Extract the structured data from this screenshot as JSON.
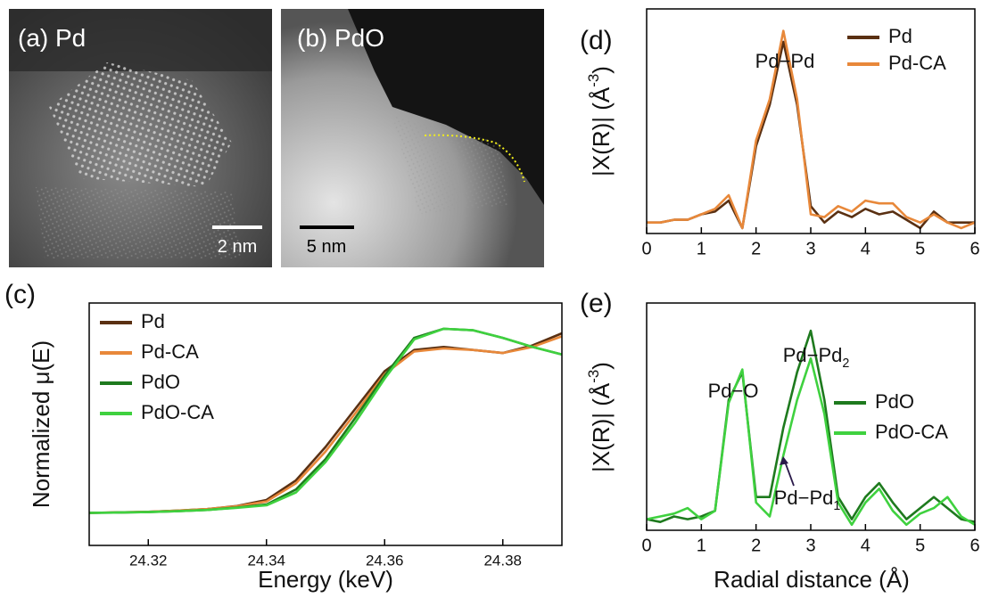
{
  "images": [
    {
      "label": "(a) Pd",
      "scale_bar": "2 nm"
    },
    {
      "label": "(b) PdO",
      "scale_bar": "5 nm"
    }
  ],
  "chart_data": [
    {
      "type": "line",
      "panel_label": "(c)",
      "xlabel": "Energy (keV)",
      "ylabel": "Normalized μ(E)",
      "x": [
        24.31,
        24.315,
        24.32,
        24.325,
        24.33,
        24.335,
        24.34,
        24.345,
        24.35,
        24.355,
        24.36,
        24.365,
        24.37,
        24.375,
        24.38,
        24.385,
        24.39
      ],
      "series": [
        {
          "name": "Pd",
          "color": "#5a3012",
          "values": [
            0.115,
            0.118,
            0.122,
            0.13,
            0.14,
            0.16,
            0.2,
            0.33,
            0.55,
            0.8,
            1.05,
            1.19,
            1.21,
            1.19,
            1.17,
            1.22,
            1.3
          ]
        },
        {
          "name": "Pd-CA",
          "color": "#e8883a",
          "values": [
            0.115,
            0.118,
            0.122,
            0.13,
            0.14,
            0.158,
            0.19,
            0.31,
            0.52,
            0.77,
            1.03,
            1.18,
            1.2,
            1.19,
            1.17,
            1.21,
            1.28
          ]
        },
        {
          "name": "PdO",
          "color": "#1e7a1e",
          "values": [
            0.115,
            0.117,
            0.12,
            0.126,
            0.134,
            0.15,
            0.17,
            0.27,
            0.47,
            0.74,
            1.02,
            1.27,
            1.33,
            1.32,
            1.27,
            1.21,
            1.16
          ]
        },
        {
          "name": "PdO-CA",
          "color": "#3fd13f",
          "values": [
            0.115,
            0.117,
            0.12,
            0.126,
            0.134,
            0.148,
            0.165,
            0.25,
            0.45,
            0.71,
            1.0,
            1.26,
            1.33,
            1.32,
            1.27,
            1.21,
            1.16
          ]
        }
      ],
      "xlim": [
        24.31,
        24.39
      ],
      "xticks": [
        24.32,
        24.34,
        24.36,
        24.38
      ],
      "ylim": [
        -0.1,
        1.5
      ],
      "legend": "upper left"
    },
    {
      "type": "line",
      "panel_label": "(d)",
      "ylabel": {
        "text": "|X(R)| (Å",
        "superscript": "-3",
        "suffix": ")"
      },
      "x": [
        0,
        0.25,
        0.5,
        0.75,
        1,
        1.25,
        1.5,
        1.75,
        2,
        2.25,
        2.5,
        2.75,
        3,
        3.25,
        3.5,
        3.75,
        4,
        4.25,
        4.5,
        4.75,
        5,
        5.25,
        5.5,
        5.75,
        6
      ],
      "series": [
        {
          "name": "Pd",
          "color": "#5a3012",
          "values": [
            0.02,
            0.02,
            0.03,
            0.03,
            0.05,
            0.06,
            0.1,
            0.0,
            0.3,
            0.45,
            0.68,
            0.45,
            0.08,
            0.02,
            0.06,
            0.04,
            0.07,
            0.05,
            0.06,
            0.03,
            0.0,
            0.06,
            0.02,
            0.02,
            0.02
          ]
        },
        {
          "name": "Pd-CA",
          "color": "#e8883a",
          "values": [
            0.02,
            0.02,
            0.03,
            0.03,
            0.05,
            0.07,
            0.12,
            0.0,
            0.32,
            0.47,
            0.72,
            0.47,
            0.05,
            0.04,
            0.08,
            0.06,
            0.1,
            0.09,
            0.09,
            0.04,
            0.02,
            0.05,
            0.02,
            0.0,
            0.02
          ]
        }
      ],
      "xlim": [
        0,
        6
      ],
      "xticks": [
        0,
        1,
        2,
        3,
        4,
        5,
        6
      ],
      "ylim": [
        -0.02,
        0.8
      ],
      "legend": "upper right",
      "annotations": [
        {
          "text": "Pd−Pd"
        }
      ]
    },
    {
      "type": "line",
      "panel_label": "(e)",
      "xlabel": "Radial distance (Å)",
      "ylabel": {
        "text": "|X(R)| (Å",
        "superscript": "-3",
        "suffix": ")"
      },
      "x": [
        0,
        0.25,
        0.5,
        0.75,
        1,
        1.25,
        1.5,
        1.75,
        2,
        2.25,
        2.5,
        2.75,
        3,
        3.25,
        3.5,
        3.75,
        4,
        4.25,
        4.5,
        4.75,
        5,
        5.25,
        5.5,
        5.75,
        6
      ],
      "series": [
        {
          "name": "PdO",
          "color": "#1e7a1e",
          "values": [
            0.02,
            0.01,
            0.03,
            0.02,
            0.03,
            0.05,
            0.45,
            0.55,
            0.1,
            0.1,
            0.35,
            0.55,
            0.7,
            0.45,
            0.1,
            0.02,
            0.1,
            0.15,
            0.08,
            0.02,
            0.06,
            0.1,
            0.06,
            0.02,
            0.01
          ]
        },
        {
          "name": "PdO-CA",
          "color": "#3fd13f",
          "values": [
            0.02,
            0.03,
            0.04,
            0.06,
            0.02,
            0.05,
            0.44,
            0.56,
            0.08,
            0.03,
            0.25,
            0.45,
            0.6,
            0.4,
            0.08,
            0.0,
            0.08,
            0.13,
            0.05,
            0.0,
            0.04,
            0.06,
            0.1,
            0.03,
            0.0
          ]
        }
      ],
      "xlim": [
        0,
        6
      ],
      "xticks": [
        0,
        1,
        2,
        3,
        4,
        5,
        6
      ],
      "ylim": [
        -0.02,
        0.8
      ],
      "legend": "center right",
      "annotations": [
        {
          "text": "Pd−O"
        },
        {
          "text": "Pd−Pd",
          "subscript": "2"
        },
        {
          "text": "Pd−Pd",
          "subscript": "1"
        }
      ]
    }
  ]
}
